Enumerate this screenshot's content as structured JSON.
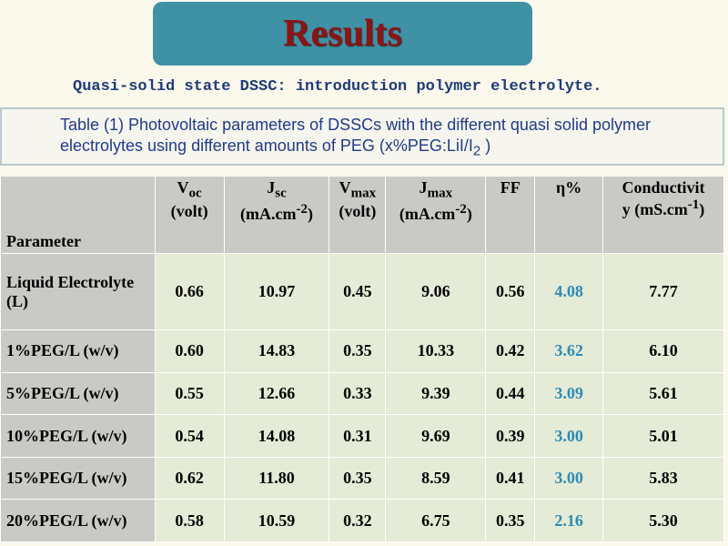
{
  "header": {
    "title": "Results",
    "subtitle": "Quasi-solid state DSSC: introduction polymer electrolyte."
  },
  "caption": {
    "text": "Table (1) Photovoltaic parameters of DSSCs with the different quasi solid polymer electrolytes using different amounts of PEG (x%PEG:LiI/I",
    "sub": "2",
    "end": " )"
  },
  "table": {
    "columns": [
      {
        "label": "Parameter"
      },
      {
        "main": "V",
        "sub": "oc",
        "unit": "(volt)"
      },
      {
        "main": "J",
        "sub": "sc",
        "unit": "(mA.cm",
        "sup": "-2",
        "end": ")"
      },
      {
        "main": "V",
        "sub": "max",
        "unit": "(volt)"
      },
      {
        "main": "J",
        "sub": "max",
        "unit": "(mA.cm",
        "sup": "-2",
        "end": ")"
      },
      {
        "label": "FF"
      },
      {
        "label": "η%"
      },
      {
        "main": "Conductivit",
        "unit": "y (mS.cm",
        "sup": "-1",
        "end": ")"
      }
    ],
    "rows": [
      [
        "Liquid Electrolyte (L)",
        "0.66",
        "10.97",
        "0.45",
        "9.06",
        "0.56",
        "4.08",
        "7.77"
      ],
      [
        "1%PEG/L (w/v)",
        "0.60",
        "14.83",
        "0.35",
        "10.33",
        "0.42",
        "3.62",
        "6.10"
      ],
      [
        "5%PEG/L (w/v)",
        "0.55",
        "12.66",
        "0.33",
        "9.39",
        "0.44",
        "3.09",
        "5.61"
      ],
      [
        "10%PEG/L (w/v)",
        "0.54",
        "14.08",
        "0.31",
        "9.69",
        "0.39",
        "3.00",
        "5.01"
      ],
      [
        "15%PEG/L (w/v)",
        "0.62",
        "11.80",
        "0.35",
        "8.59",
        "0.41",
        "3.00",
        "5.83"
      ],
      [
        "20%PEG/L (w/v)",
        "0.58",
        "10.59",
        "0.32",
        "6.75",
        "0.35",
        "2.16",
        "5.30"
      ]
    ]
  }
}
